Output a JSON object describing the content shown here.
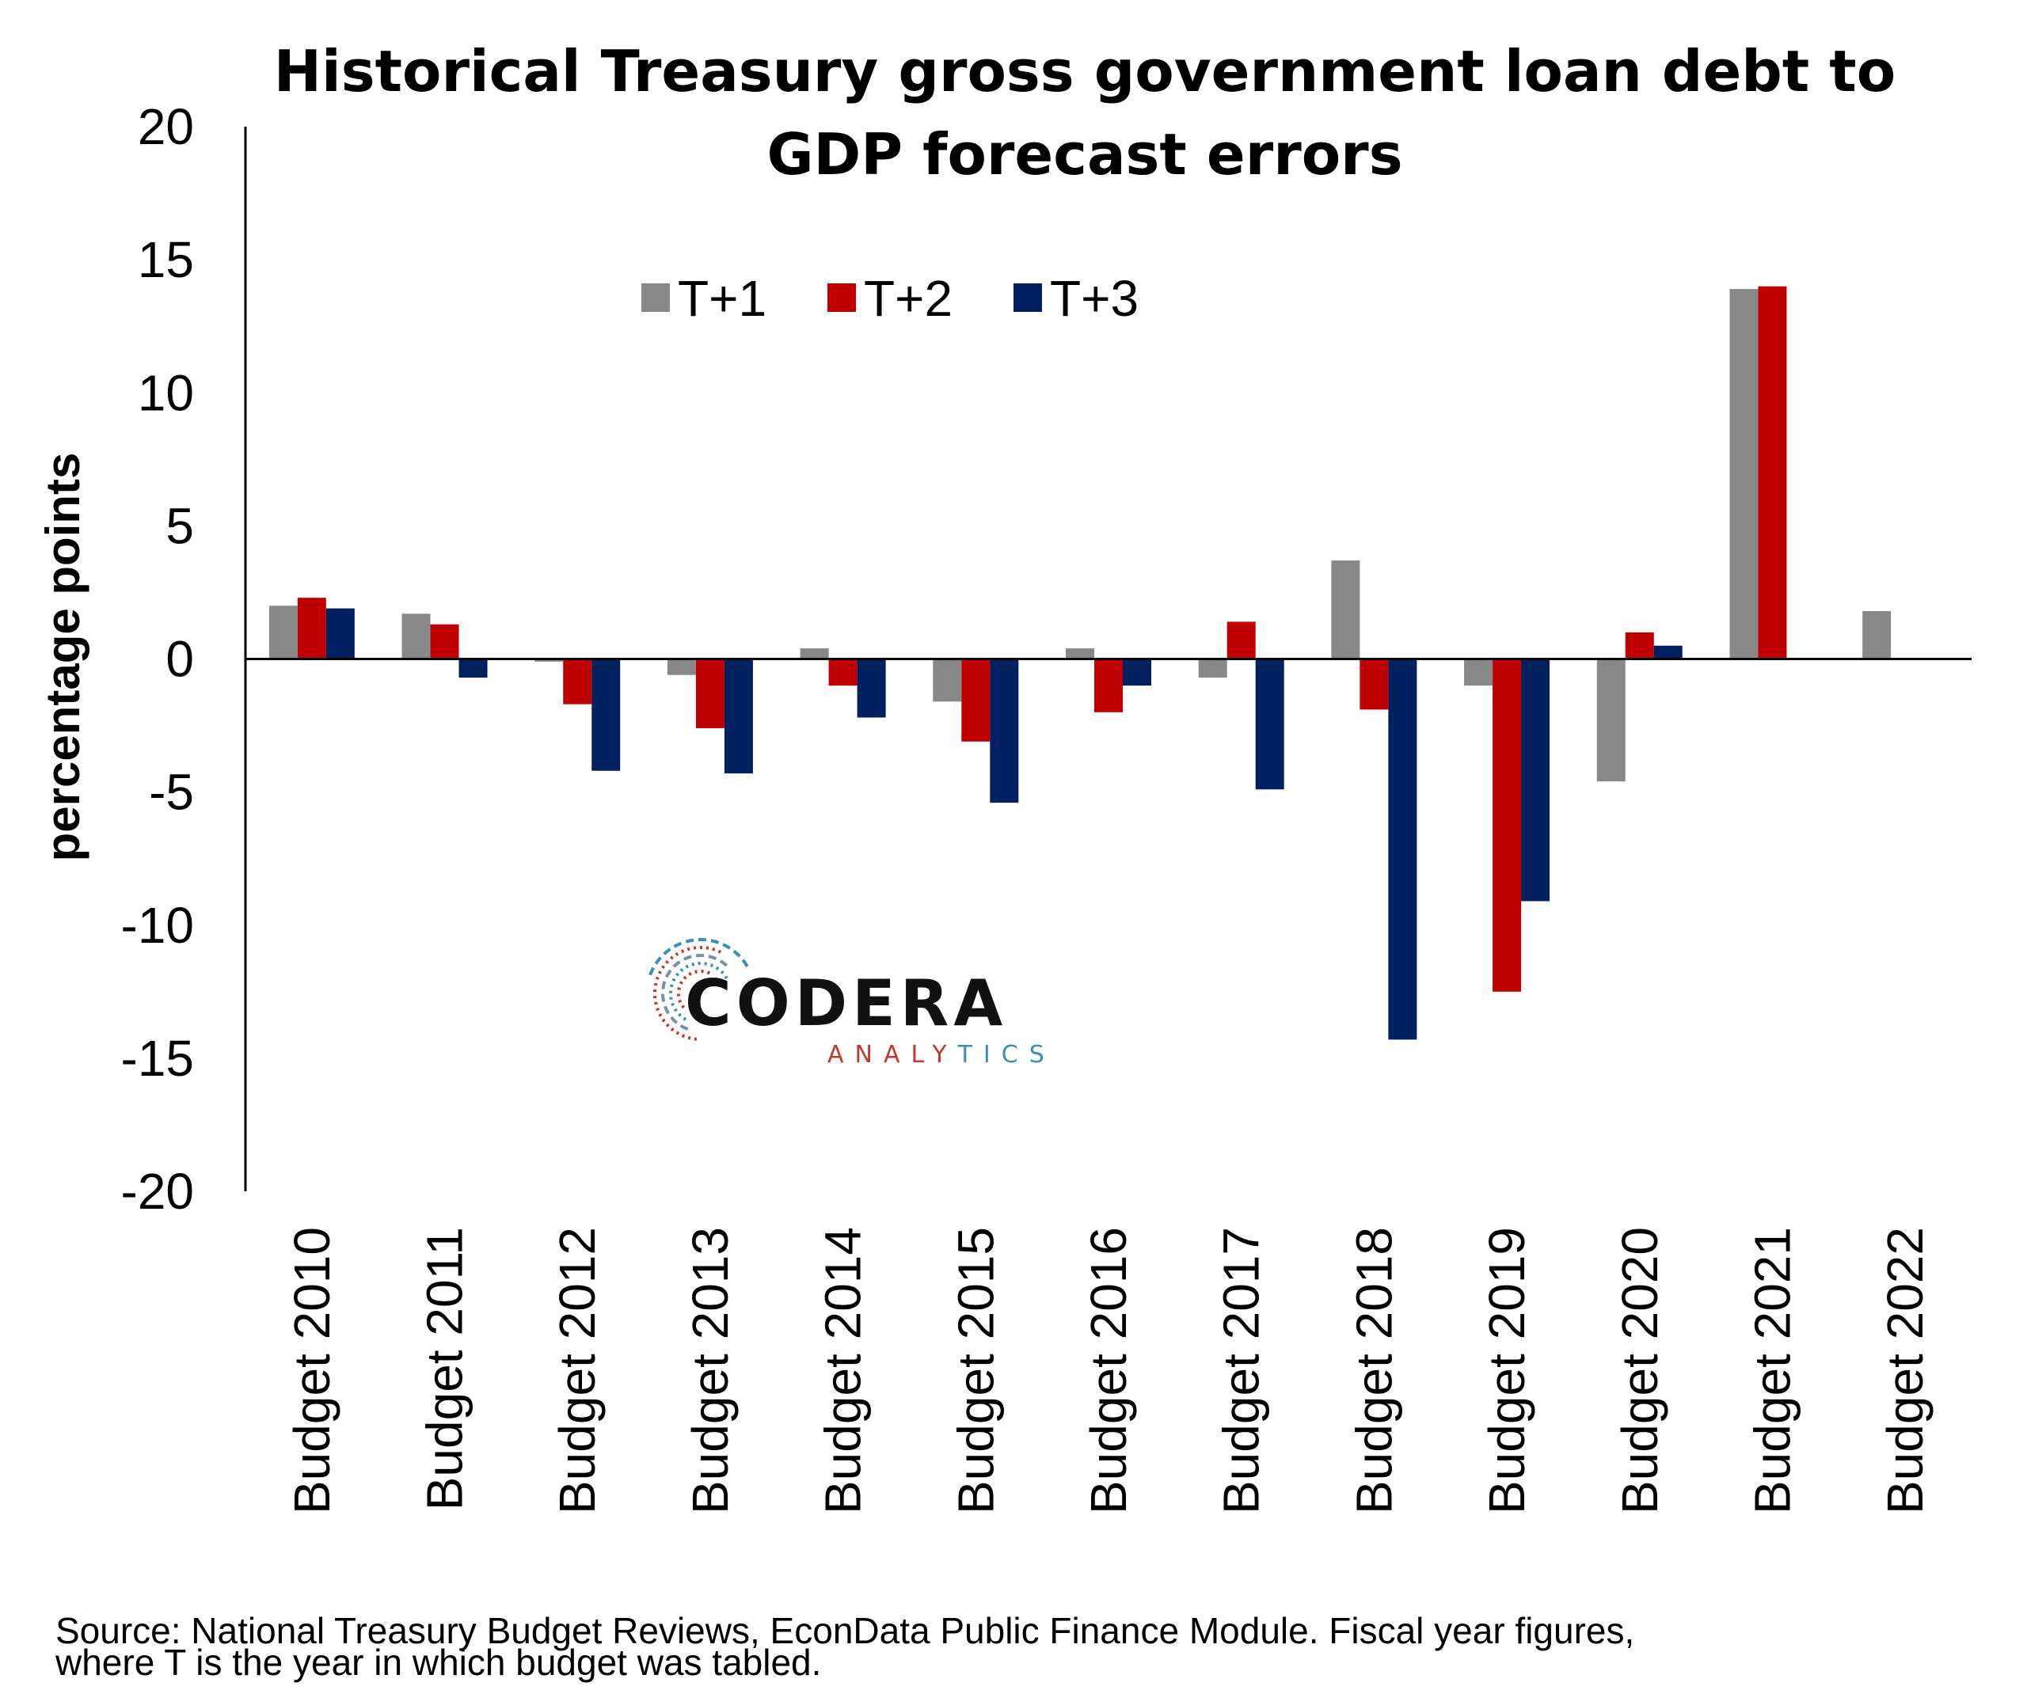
{
  "chart_data": {
    "type": "bar",
    "title_lines": [
      "Historical Treasury gross government loan debt to",
      "GDP forecast errors"
    ],
    "ylabel": "percentage points",
    "xlabel": "",
    "ylim": [
      -20,
      20
    ],
    "yticks": [
      20,
      15,
      10,
      5,
      0,
      -5,
      -10,
      -15,
      -20
    ],
    "categories": [
      "Budget 2010",
      "Budget 2011",
      "Budget 2012",
      "Budget 2013",
      "Budget 2014",
      "Budget 2015",
      "Budget 2016",
      "Budget 2017",
      "Budget 2018",
      "Budget 2019",
      "Budget 2020",
      "Budget 2021",
      "Budget 2022"
    ],
    "series": [
      {
        "name": "T+1",
        "color": "#888888",
        "values": [
          2.0,
          1.7,
          -0.1,
          -0.6,
          0.4,
          -1.6,
          0.4,
          -0.7,
          3.7,
          -1.0,
          -4.6,
          13.9,
          1.8
        ]
      },
      {
        "name": "T+2",
        "color": "#C00000",
        "values": [
          2.3,
          1.3,
          -1.7,
          -2.6,
          -1.0,
          -3.1,
          -2.0,
          1.4,
          -1.9,
          -12.5,
          1.0,
          14.0,
          null
        ]
      },
      {
        "name": "T+3",
        "color": "#002060",
        "values": [
          1.9,
          -0.7,
          -4.2,
          -4.3,
          -2.2,
          -5.4,
          -1.0,
          -4.9,
          -14.3,
          -9.1,
          0.5,
          null,
          null
        ]
      }
    ],
    "legend_position": "top-center",
    "grid": false
  },
  "logo": {
    "name": "CODERA",
    "tagline": "ANALYTICS",
    "ring_colors": [
      "#C0392B",
      "#3A8FB7",
      "#7B8FA6"
    ],
    "tagline_color_left": "#C0392B",
    "tagline_color_right": "#3A8FB7"
  },
  "source": {
    "line1": "Source: National Treasury Budget Reviews, EconData Public Finance Module. Fiscal year figures,",
    "line2": "where T is the year in which budget was tabled."
  }
}
